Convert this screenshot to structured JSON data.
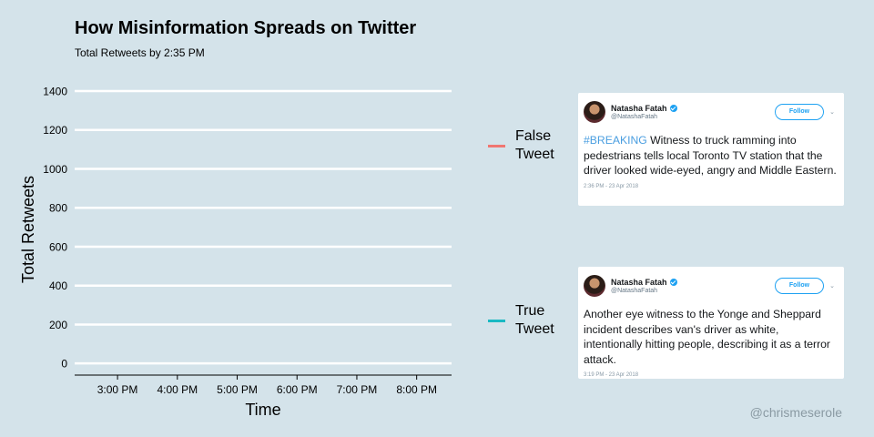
{
  "chart_data": {
    "type": "line",
    "title": "How Misinformation Spreads on Twitter",
    "subtitle": "Total Retweets by 2:35 PM",
    "xlabel": "Time",
    "ylabel": "Total Retweets",
    "x_ticks": [
      "3:00 PM",
      "4:00 PM",
      "5:00 PM",
      "6:00 PM",
      "7:00 PM",
      "8:00 PM"
    ],
    "xlim": [
      "2:17 PM",
      "8:35 PM"
    ],
    "y_ticks": [
      0,
      200,
      400,
      600,
      800,
      1000,
      1200,
      1400
    ],
    "ylim": [
      -60,
      1400
    ],
    "grid": "horizontal",
    "legend_position": "right",
    "series": [
      {
        "name": "False Tweet",
        "color": "#f07671",
        "values": []
      },
      {
        "name": "True Tweet",
        "color": "#1ab9c3",
        "values": []
      }
    ]
  },
  "legend": {
    "false_label": "False\nTweet",
    "true_label": "True\nTweet"
  },
  "tweets": [
    {
      "name": "Natasha Fatah",
      "handle": "@NatashaFatah",
      "follow_label": "Follow",
      "hashtag": "#BREAKING",
      "text": " Witness to truck ramming into pedestrians tells local Toronto TV station that the driver looked wide-eyed, angry and Middle Eastern.",
      "time": "2:36 PM - 23 Apr 2018"
    },
    {
      "name": "Natasha Fatah",
      "handle": "@NatashaFatah",
      "follow_label": "Follow",
      "hashtag": "",
      "text": "Another eye witness to the Yonge and Sheppard incident describes van's driver as white, intentionally hitting people, describing it as a terror attack.",
      "time": "3:19 PM - 23 Apr 2018"
    }
  ],
  "credit": "@chrismeserole"
}
